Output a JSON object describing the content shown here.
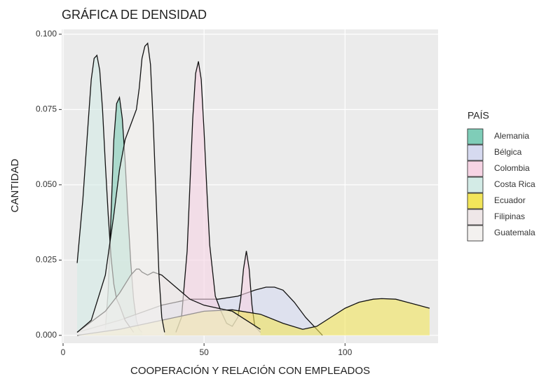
{
  "chart_data": {
    "type": "density",
    "title": "GRÁFICA DE DENSIDAD",
    "x_label": "COOPERACIÓN Y RELACIÓN CON EMPLEADOS",
    "y_label": "CANTIDAD",
    "legend_title": "PAÍS",
    "legend_position": "right",
    "grid": true,
    "xlim": [
      -0.5,
      133
    ],
    "ylim": [
      -0.0026,
      0.1016
    ],
    "xticks": [
      0,
      50,
      100
    ],
    "yticks": [
      {
        "value": 0,
        "label": "0.000"
      },
      {
        "value": 0.025,
        "label": "0.025"
      },
      {
        "value": 0.05,
        "label": "0.050"
      },
      {
        "value": 0.075,
        "label": "0.075"
      },
      {
        "value": 0.1,
        "label": "0.100"
      }
    ],
    "series": [
      {
        "name": "Alemania",
        "color": "#7fcdb8",
        "x": [
          15,
          16,
          17,
          18,
          19,
          20,
          21,
          22,
          23,
          24,
          25,
          26,
          27,
          28
        ],
        "values": [
          0.002,
          0.015,
          0.04,
          0.065,
          0.077,
          0.079,
          0.072,
          0.058,
          0.04,
          0.024,
          0.012,
          0.005,
          0.002,
          0.001
        ]
      },
      {
        "name": "Bélgica",
        "color": "#d6daf0",
        "x": [
          5,
          20,
          35,
          45,
          55,
          62,
          68,
          72,
          75,
          78,
          82,
          86,
          90,
          92
        ],
        "values": [
          0.001,
          0.005,
          0.01,
          0.012,
          0.012,
          0.013,
          0.015,
          0.016,
          0.016,
          0.015,
          0.011,
          0.006,
          0.002,
          0.0
        ]
      },
      {
        "name": "Colombia",
        "color": "#f6d4e4",
        "x": [
          40,
          42,
          44,
          45,
          46,
          47,
          48,
          49,
          50,
          51,
          52,
          54,
          56,
          58,
          60,
          62,
          63,
          64,
          65,
          66,
          67,
          68,
          70
        ],
        "values": [
          0.001,
          0.006,
          0.028,
          0.05,
          0.072,
          0.087,
          0.091,
          0.085,
          0.068,
          0.048,
          0.03,
          0.013,
          0.008,
          0.004,
          0.003,
          0.006,
          0.012,
          0.022,
          0.028,
          0.022,
          0.01,
          0.003,
          0.001
        ]
      },
      {
        "name": "Costa Rica",
        "color": "#d3ebe6",
        "x": [
          5,
          7,
          9,
          10,
          11,
          12,
          13,
          14,
          15,
          16,
          17,
          18,
          19,
          20,
          22,
          25
        ],
        "values": [
          0.024,
          0.045,
          0.072,
          0.085,
          0.092,
          0.093,
          0.088,
          0.075,
          0.057,
          0.04,
          0.026,
          0.017,
          0.012,
          0.01,
          0.005,
          0.001
        ]
      },
      {
        "name": "Ecuador",
        "color": "#f2e55a",
        "x": [
          5,
          20,
          35,
          50,
          60,
          70,
          78,
          85,
          90,
          95,
          100,
          105,
          110,
          113,
          118,
          122,
          126,
          130
        ],
        "values": [
          0.0,
          0.002,
          0.005,
          0.008,
          0.0085,
          0.007,
          0.004,
          0.002,
          0.003,
          0.006,
          0.009,
          0.011,
          0.012,
          0.0122,
          0.012,
          0.011,
          0.01,
          0.009
        ]
      },
      {
        "name": "Filipinas",
        "color": "#efe7e8",
        "x": [
          5,
          15,
          20,
          24,
          26,
          27,
          28,
          30,
          32,
          35,
          40,
          45,
          50,
          55,
          60,
          65,
          70
        ],
        "values": [
          0.001,
          0.008,
          0.014,
          0.02,
          0.022,
          0.022,
          0.021,
          0.02,
          0.021,
          0.02,
          0.016,
          0.012,
          0.01,
          0.009,
          0.008,
          0.005,
          0.002
        ]
      },
      {
        "name": "Guatemala",
        "color": "#f3f1ef",
        "x": [
          5,
          10,
          15,
          18,
          20,
          22,
          24,
          26,
          27,
          28,
          29,
          30,
          31,
          32,
          33,
          34,
          35,
          36
        ],
        "values": [
          0.001,
          0.005,
          0.02,
          0.04,
          0.055,
          0.065,
          0.07,
          0.075,
          0.082,
          0.092,
          0.096,
          0.097,
          0.09,
          0.07,
          0.045,
          0.02,
          0.006,
          0.001
        ]
      }
    ]
  }
}
